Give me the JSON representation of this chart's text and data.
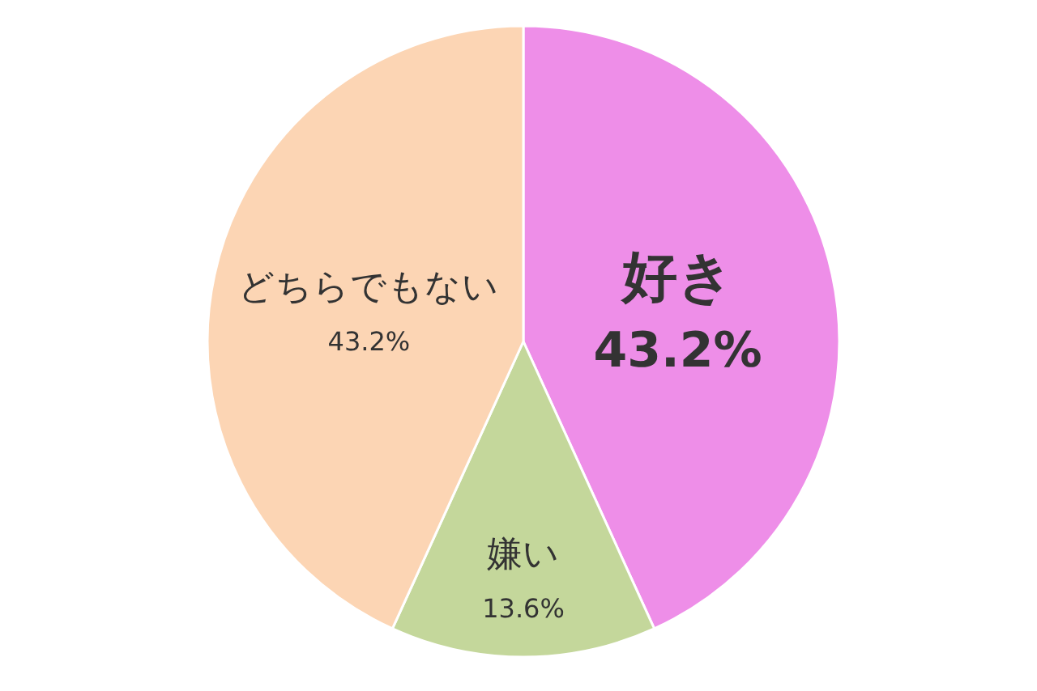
{
  "chart_data": {
    "type": "pie",
    "categories": [
      "好き",
      "嫌い",
      "どちらでもない"
    ],
    "values": [
      43.2,
      13.6,
      43.2
    ],
    "colors": [
      "#ee8ee8",
      "#c4d79b",
      "#fcd5b4"
    ],
    "value_labels": [
      "43.2%",
      "13.6%",
      "43.2%"
    ]
  }
}
